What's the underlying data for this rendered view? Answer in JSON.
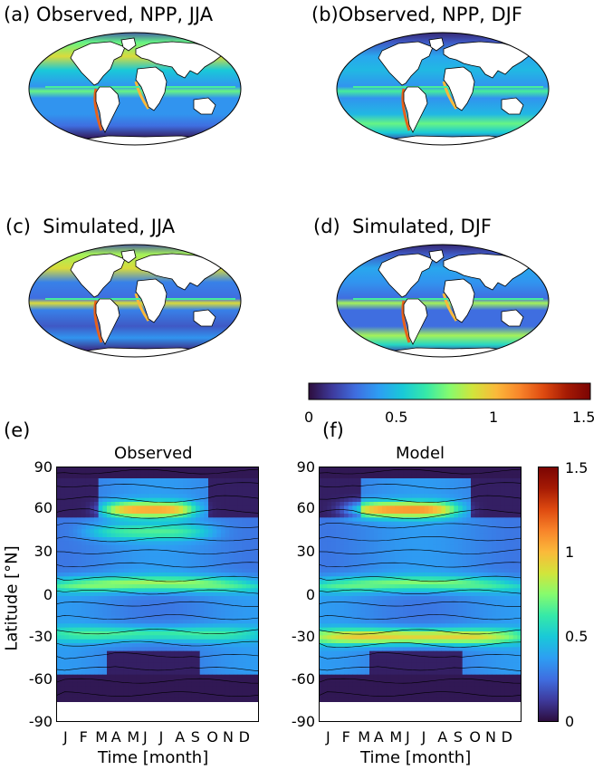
{
  "colors": {
    "scale": [
      "#2d0d3d",
      "#3e3a9c",
      "#3f6ee0",
      "#2d9ef3",
      "#19c9d8",
      "#36e9a8",
      "#86fb6e",
      "#d2e43b",
      "#fbb93a",
      "#f8842a",
      "#de4a10",
      "#a51a04",
      "#7a0403"
    ],
    "land": "#ffffff",
    "coast": "#000000"
  },
  "panels": {
    "a": {
      "label": "(a)",
      "title": "Observed, NPP, JJA"
    },
    "b": {
      "label": "(b)",
      "title": "Observed, NPP, DJF"
    },
    "c": {
      "label": "(c)",
      "title": "Simulated, JJA"
    },
    "d": {
      "label": "(d)",
      "title": "Simulated, DJF"
    },
    "e": {
      "label": "(e)",
      "title": "Observed"
    },
    "f": {
      "label": "(f)",
      "title": "Model"
    }
  },
  "chart_data": [
    {
      "type": "heatmap",
      "panel": "(a)",
      "title": "Observed, NPP, JJA",
      "projection": "global map, Mollweide-like",
      "season": "JJA",
      "zlim": [
        0,
        1.5
      ]
    },
    {
      "type": "heatmap",
      "panel": "(b)",
      "title": "Observed, NPP, DJF",
      "projection": "global map, Mollweide-like",
      "season": "DJF",
      "zlim": [
        0,
        1.5
      ]
    },
    {
      "type": "heatmap",
      "panel": "(c)",
      "title": "Simulated, JJA",
      "projection": "global map, Mollweide-like",
      "season": "JJA",
      "zlim": [
        0,
        1.5
      ]
    },
    {
      "type": "heatmap",
      "panel": "(d)",
      "title": "Simulated, DJF",
      "projection": "global map, Mollweide-like",
      "season": "DJF",
      "zlim": [
        0,
        1.5
      ]
    },
    {
      "type": "heatmap",
      "panel": "(e)",
      "title": "Observed",
      "xlabel": "Time [month]",
      "ylabel": "Latitude [°N]",
      "x_tick_labels": [
        "J",
        "F",
        "M",
        "A",
        "M",
        "J",
        "J",
        "A",
        "S",
        "O",
        "N",
        "D"
      ],
      "y_ticks": [
        90,
        60,
        30,
        0,
        -30,
        -60,
        -90
      ],
      "ylim": [
        -90,
        90
      ],
      "zlim": [
        0,
        1.5
      ],
      "contours": true,
      "bands": [
        {
          "lat": 57,
          "peak": 1.0,
          "months": [
            4,
            7
          ]
        },
        {
          "lat": 40,
          "peak": 0.6,
          "months": [
            3,
            8
          ]
        },
        {
          "lat": 0,
          "peak": 0.75,
          "months": [
            0,
            11
          ]
        },
        {
          "lat": -38,
          "peak": 0.65,
          "months": [
            0,
            11
          ]
        }
      ]
    },
    {
      "type": "heatmap",
      "panel": "(f)",
      "title": "Model",
      "xlabel": "Time [month]",
      "ylabel": "",
      "x_tick_labels": [
        "J",
        "F",
        "M",
        "A",
        "M",
        "J",
        "J",
        "A",
        "S",
        "O",
        "N",
        "D"
      ],
      "y_ticks": [
        90,
        60,
        30,
        0,
        -30,
        -60,
        -90
      ],
      "ylim": [
        -90,
        90
      ],
      "zlim": [
        0,
        1.5
      ],
      "contours": true,
      "bands": [
        {
          "lat": 57,
          "peak": 1.05,
          "months": [
            3,
            7
          ]
        },
        {
          "lat": 0,
          "peak": 0.7,
          "months": [
            0,
            11
          ]
        },
        {
          "lat": -40,
          "peak": 0.95,
          "months": [
            0,
            11
          ]
        }
      ]
    }
  ],
  "colorbar_horizontal": {
    "ticks": [
      "0",
      "0.5",
      "1",
      "1.5"
    ]
  },
  "colorbar_vertical": {
    "ticks": [
      "1.5",
      "1",
      "0.5",
      "0"
    ]
  },
  "axis": {
    "ylabel": "Latitude [°N]",
    "xlabel": "Time [month]",
    "yticks": [
      "90",
      "60",
      "30",
      "0",
      "-30",
      "-60",
      "-90"
    ],
    "months": [
      "J",
      "F",
      "M",
      "A",
      "M",
      "J",
      "J",
      "A",
      "S",
      "O",
      "N",
      "D"
    ]
  }
}
